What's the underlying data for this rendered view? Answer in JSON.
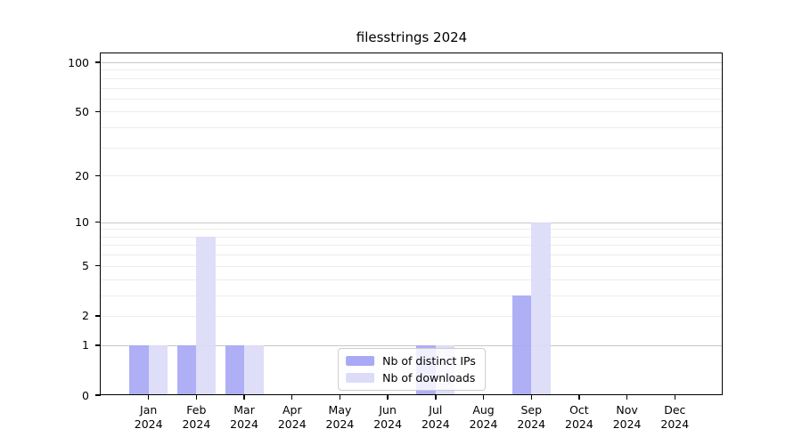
{
  "chart_data": {
    "type": "bar",
    "title": "filesstrings 2024",
    "xlabel": "",
    "ylabel": "",
    "categories": [
      "Jan 2024",
      "Feb 2024",
      "Mar 2024",
      "Apr 2024",
      "May 2024",
      "Jun 2024",
      "Jul 2024",
      "Aug 2024",
      "Sep 2024",
      "Oct 2024",
      "Nov 2024",
      "Dec 2024"
    ],
    "series": [
      {
        "name": "Nb of distinct IPs",
        "color": "#a9a9f5",
        "values": [
          1,
          1,
          1,
          0,
          0,
          0,
          1,
          0,
          3,
          0,
          0,
          0
        ]
      },
      {
        "name": "Nb of downloads",
        "color": "#dcdcf8",
        "values": [
          1,
          8,
          1,
          0,
          0,
          0,
          1,
          0,
          10,
          0,
          0,
          0
        ]
      }
    ],
    "y_axis": {
      "scale": "log1p",
      "lim": [
        0,
        100
      ],
      "ticks": [
        0,
        1,
        2,
        5,
        10,
        20,
        50,
        100
      ],
      "major_grid_values": [
        1,
        10,
        100
      ],
      "minor_grid_values": [
        2,
        3,
        4,
        5,
        6,
        7,
        8,
        9,
        20,
        30,
        40,
        50,
        60,
        70,
        80,
        90
      ]
    },
    "grid": true,
    "legend_position": "lower center"
  },
  "colors": {
    "background": "#ffffff",
    "axis": "#000000",
    "major_grid": "#c6c6c6",
    "minor_grid": "#ececec",
    "legend_border": "#cccccc",
    "bar_distinct_ips": "#a9a9f5",
    "bar_downloads": "#dcdcf8"
  }
}
